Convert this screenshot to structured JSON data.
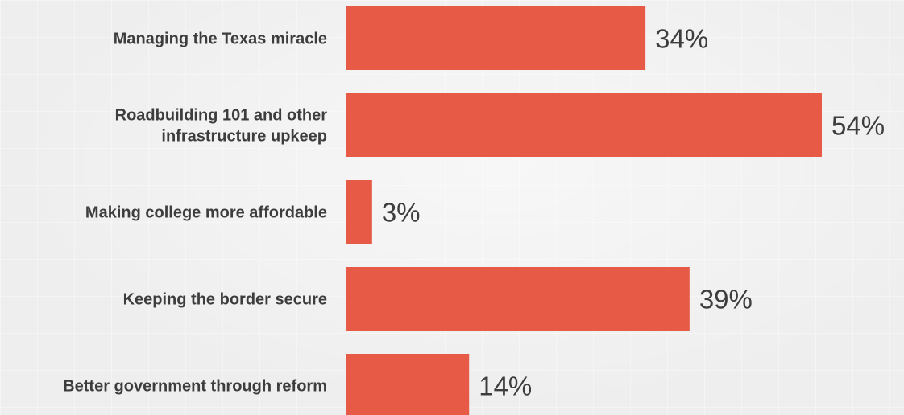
{
  "chart_data": {
    "type": "bar",
    "orientation": "horizontal",
    "categories": [
      [
        "Managing the Texas miracle"
      ],
      [
        "Roadbuilding 101 and other",
        "infrastructure upkeep"
      ],
      [
        "Making college more affordable"
      ],
      [
        "Keeping the border secure"
      ],
      [
        "Better government through reform"
      ]
    ],
    "values": [
      34,
      54,
      3,
      39,
      14
    ],
    "value_labels": [
      "34%",
      "54%",
      "3%",
      "39%",
      "14%"
    ],
    "xlim": [
      0,
      54
    ],
    "bar_color": "#e65a46",
    "text_color": "#3d3d3d",
    "grid": false
  }
}
